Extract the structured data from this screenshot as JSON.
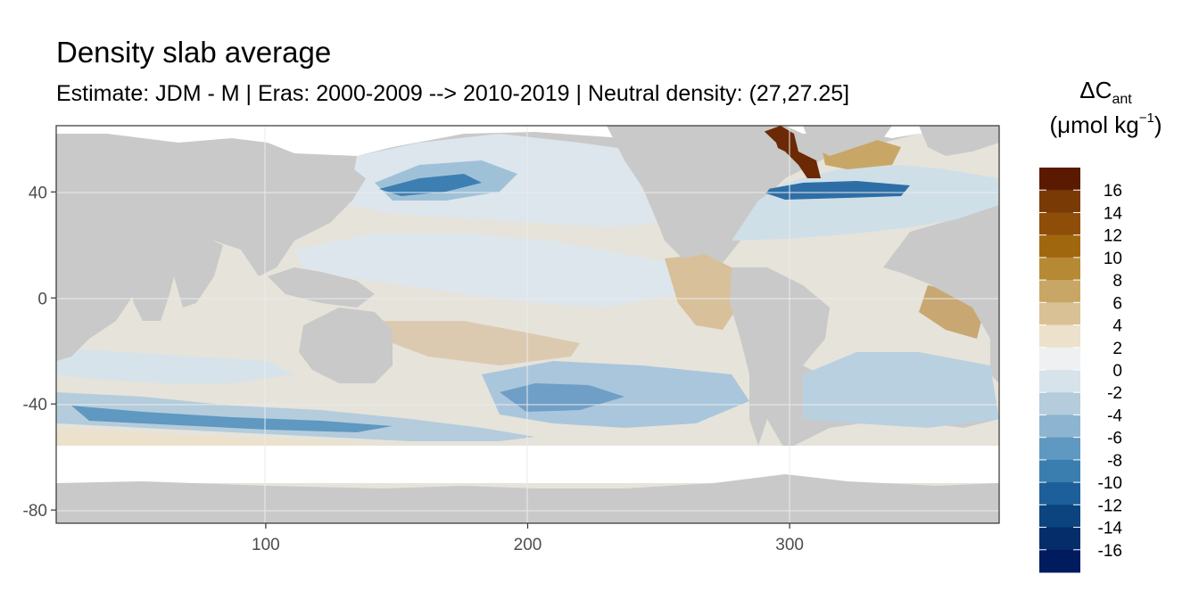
{
  "title": "Density slab average",
  "subtitle": "Estimate: JDM - M | Eras: 2000-2009 --> 2010-2019 | Neutral density: (27,27.25]",
  "legend": {
    "symbol": "ΔC",
    "subscript": "ant",
    "unit_prefix": "(μmol kg",
    "unit_exponent": "−1",
    "unit_suffix": ")",
    "labels": [
      "16",
      "14",
      "12",
      "10",
      "8",
      "6",
      "4",
      "2",
      "0",
      "-2",
      "-4",
      "-6",
      "-8",
      "-10",
      "-12",
      "-14",
      "-16"
    ],
    "colors": [
      "#5a1a02",
      "#7a3a06",
      "#8e4e0a",
      "#a1670f",
      "#b68a35",
      "#c8a766",
      "#d9c195",
      "#ece1cb",
      "#eef0f1",
      "#d6e3ea",
      "#b4ccdc",
      "#8db5d1",
      "#5f98c0",
      "#3a7eb0",
      "#1d5f9a",
      "#0b447f",
      "#052d6a",
      "#001b5e"
    ]
  },
  "chart_data": {
    "type": "heatmap",
    "title": "Density slab average",
    "subtitle": "Estimate: JDM - M | Eras: 2000-2009 --> 2010-2019 | Neutral density: (27,27.25]",
    "xlabel": "",
    "ylabel": "",
    "x_ticks": [
      100,
      200,
      300
    ],
    "y_ticks": [
      40,
      0,
      -40,
      -80
    ],
    "xlim": [
      20,
      380
    ],
    "ylim": [
      -85,
      65
    ],
    "grid": true,
    "legend_position": "right",
    "colorbar_label": "ΔC_ant (μmol kg−1)",
    "colorbar_breaks": [
      16,
      14,
      12,
      10,
      8,
      6,
      4,
      2,
      0,
      -2,
      -4,
      -6,
      -8,
      -10,
      -12,
      -14,
      -16
    ],
    "colorbar_range": [
      -18,
      18
    ],
    "regions": [
      {
        "x": [
          100,
          200
        ],
        "y": [
          -40,
          0
        ],
        "value": 0
      },
      {
        "x": [
          140,
          190
        ],
        "y": [
          35,
          45
        ],
        "value": -10
      },
      {
        "x": [
          300,
          320
        ],
        "y": [
          55,
          65
        ],
        "value": 16
      },
      {
        "x": [
          310,
          340
        ],
        "y": [
          35,
          45
        ],
        "value": -8
      },
      {
        "x": [
          190,
          270
        ],
        "y": [
          -50,
          -30
        ],
        "value": -6
      },
      {
        "x": [
          350,
          380
        ],
        "y": [
          -10,
          10
        ],
        "value": 4
      },
      {
        "x": [
          20,
          380
        ],
        "y": [
          -55,
          -40
        ],
        "value": -4
      }
    ]
  }
}
